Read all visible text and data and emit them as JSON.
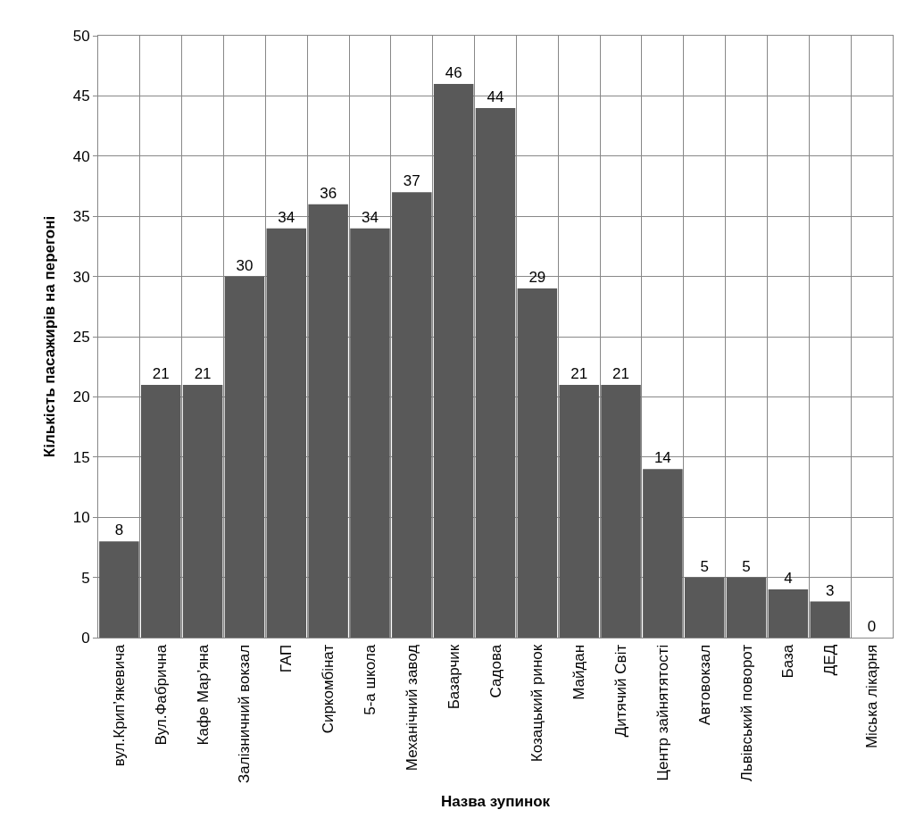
{
  "chart_data": {
    "type": "bar",
    "xlabel": "Назва зупинок",
    "ylabel": "Кількість пасажирів на перегоні",
    "categories": [
      "вул.Крип’якевича",
      "Вул.Фабрична",
      "Кафе Мар’яна",
      "Залізничний вокзал",
      "ГАП",
      "Сиркомбінат",
      "5-а школа",
      "Механічний завод",
      "Базарчик",
      "Садова",
      "Козацький ринок",
      "Майдан",
      "Дитячий Світ",
      "Центр зайнятятості",
      "Автовокзал",
      "Львівський поворот",
      "База",
      "ДЕД",
      "Міська лікарня"
    ],
    "values": [
      8,
      21,
      21,
      30,
      34,
      36,
      34,
      37,
      46,
      44,
      29,
      21,
      21,
      14,
      5,
      5,
      4,
      3,
      0
    ],
    "color": "#595959",
    "ylim": [
      0,
      50
    ],
    "yticks": [
      0,
      5,
      10,
      15,
      20,
      25,
      30,
      35,
      40,
      45,
      50
    ],
    "grid": true,
    "data_labels": true
  }
}
